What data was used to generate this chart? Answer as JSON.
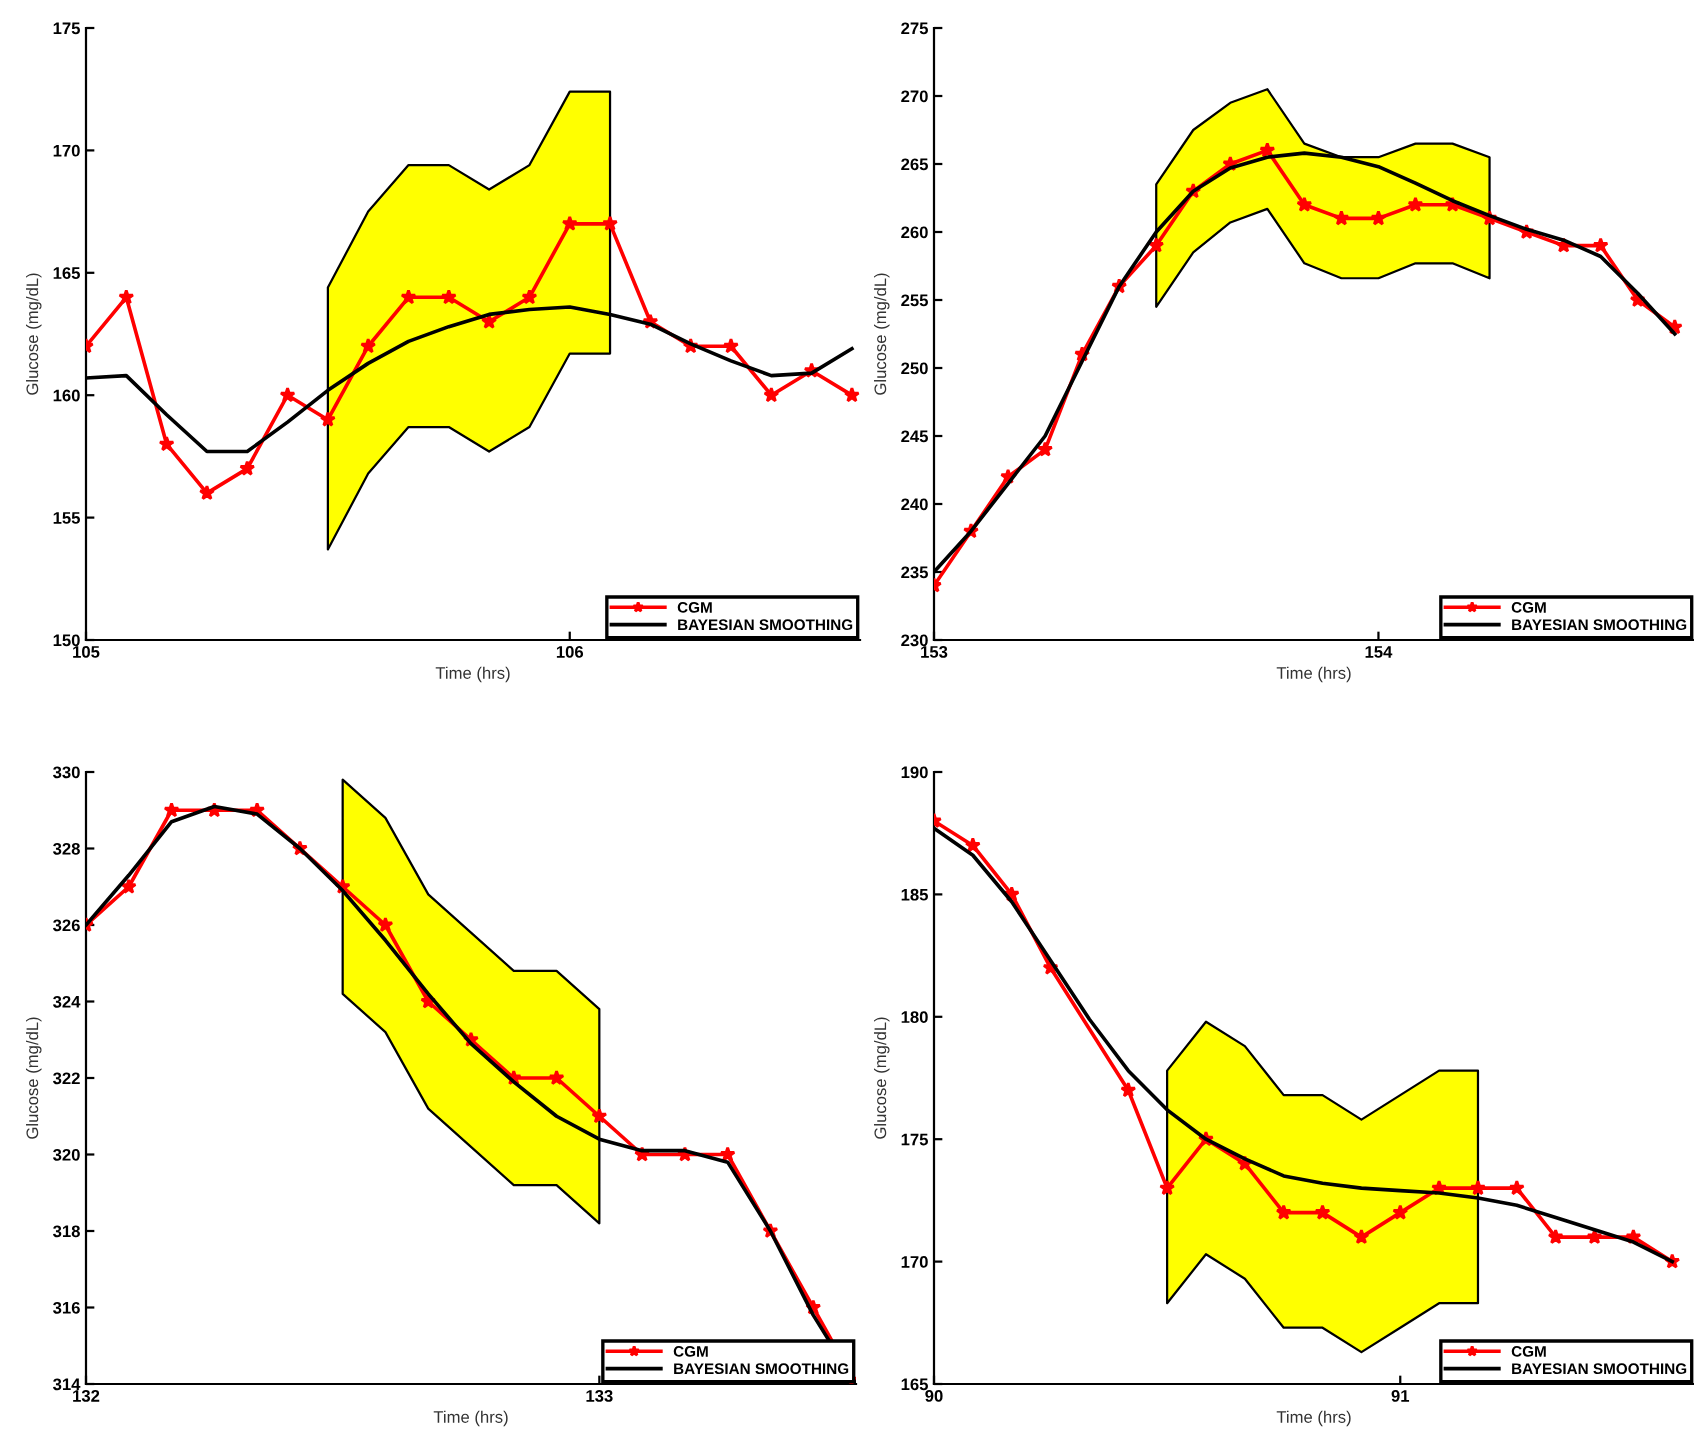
{
  "chart_data": [
    {
      "type": "line",
      "xlabel": "Time (hrs)",
      "ylabel": "Glucose (mg/dL)",
      "xlim": [
        105,
        106.6
      ],
      "xticks": [
        105,
        106
      ],
      "ylim": [
        150,
        175
      ],
      "yticks": [
        150,
        155,
        160,
        165,
        170,
        175
      ],
      "grid": false,
      "legend": "bottom right",
      "x": [
        105,
        105.0833,
        105.1667,
        105.25,
        105.3333,
        105.4167,
        105.5,
        105.5833,
        105.6667,
        105.75,
        105.8333,
        105.9167,
        106,
        106.0833,
        106.1667,
        106.25,
        106.3333,
        106.4167,
        106.5,
        106.5833
      ],
      "series": [
        {
          "name": "CGM",
          "color": "#ff0000",
          "marker": "star",
          "values": [
            162,
            164,
            158,
            156,
            157,
            160,
            159,
            162,
            164,
            164,
            163,
            164,
            167,
            167,
            163,
            162,
            162,
            160,
            161,
            160
          ]
        },
        {
          "name": "BAYESIAN SMOOTHING",
          "color": "#000000",
          "marker": "none",
          "values": [
            160.7,
            160.8,
            159.2,
            157.7,
            157.7,
            158.9,
            160.2,
            161.3,
            162.2,
            162.8,
            163.3,
            163.5,
            163.6,
            163.3,
            162.9,
            162.1,
            161.4,
            160.8,
            160.9,
            161.9
          ],
          "upper": [
            null,
            null,
            null,
            null,
            null,
            null,
            164.4,
            167.5,
            169.4,
            169.4,
            168.4,
            169.4,
            172.4,
            172.4,
            null,
            null,
            null,
            null,
            null,
            null
          ],
          "lower": [
            null,
            null,
            null,
            null,
            null,
            null,
            153.7,
            156.8,
            158.7,
            158.7,
            157.7,
            158.7,
            161.7,
            161.7,
            null,
            null,
            null,
            null,
            null,
            null
          ]
        }
      ]
    },
    {
      "type": "line",
      "xlabel": "Time (hrs)",
      "ylabel": "Glucose (mg/dL)",
      "xlim": [
        153,
        154.71
      ],
      "xticks": [
        153,
        154
      ],
      "ylim": [
        230,
        275
      ],
      "yticks": [
        230,
        235,
        240,
        245,
        250,
        255,
        260,
        265,
        270,
        275
      ],
      "grid": false,
      "legend": "bottom right",
      "x": [
        153,
        153.0833,
        153.1667,
        153.25,
        153.3333,
        153.4167,
        153.5,
        153.5833,
        153.6667,
        153.75,
        153.8333,
        153.9167,
        154,
        154.0833,
        154.1667,
        154.25,
        154.3333,
        154.4167,
        154.5,
        154.5833,
        154.6667
      ],
      "series": [
        {
          "name": "CGM",
          "color": "#ff0000",
          "marker": "star",
          "values": [
            234,
            238,
            242,
            244,
            251,
            256,
            259,
            263,
            265,
            266,
            262,
            261,
            261,
            262,
            262,
            261,
            260,
            259,
            259,
            255,
            253
          ]
        },
        {
          "name": "BAYESIAN SMOOTHING",
          "color": "#000000",
          "marker": "none",
          "values": [
            235,
            238,
            241.5,
            245,
            250.5,
            256,
            260,
            263,
            264.7,
            265.5,
            265.8,
            265.5,
            264.8,
            263.6,
            262.3,
            261.2,
            260.2,
            259.4,
            258.2,
            255.5,
            252.5
          ],
          "upper": [
            null,
            null,
            null,
            null,
            null,
            null,
            263.5,
            267.5,
            269.5,
            270.5,
            266.5,
            265.5,
            265.5,
            266.5,
            266.5,
            265.5,
            null,
            null,
            null,
            null,
            null
          ],
          "lower": [
            null,
            null,
            null,
            null,
            null,
            null,
            254.5,
            258.5,
            260.7,
            261.7,
            257.7,
            256.6,
            256.6,
            257.7,
            257.7,
            256.6,
            null,
            null,
            null,
            null,
            null
          ]
        }
      ]
    },
    {
      "type": "line",
      "xlabel": "Time (hrs)",
      "ylabel": "Glucose (mg/dL)",
      "xlim": [
        132,
        133.5
      ],
      "xticks": [
        132,
        133
      ],
      "ylim": [
        314,
        330
      ],
      "yticks": [
        314,
        316,
        318,
        320,
        322,
        324,
        326,
        328,
        330
      ],
      "grid": false,
      "legend": "bottom right",
      "x": [
        132,
        132.0833,
        132.1667,
        132.25,
        132.3333,
        132.4167,
        132.5,
        132.5833,
        132.6667,
        132.75,
        132.8333,
        132.9167,
        133,
        133.0833,
        133.1667,
        133.25,
        133.3333,
        133.4167,
        133.5
      ],
      "series": [
        {
          "name": "CGM",
          "color": "#ff0000",
          "marker": "star",
          "values": [
            326,
            327,
            329,
            329,
            329,
            328,
            327,
            326,
            324,
            323,
            322,
            322,
            321,
            320,
            320,
            320,
            318,
            316,
            314
          ]
        },
        {
          "name": "BAYESIAN SMOOTHING",
          "color": "#000000",
          "marker": "none",
          "values": [
            326,
            327.3,
            328.7,
            329.1,
            328.9,
            328,
            326.9,
            325.6,
            324.2,
            322.9,
            321.9,
            321,
            320.4,
            320.1,
            320.1,
            319.8,
            318,
            315.8,
            314
          ],
          "upper": [
            null,
            null,
            null,
            null,
            null,
            null,
            329.8,
            328.8,
            326.8,
            325.8,
            324.8,
            324.8,
            323.8,
            null,
            null,
            null,
            null,
            null,
            null
          ],
          "lower": [
            null,
            null,
            null,
            null,
            null,
            null,
            324.2,
            323.2,
            321.2,
            320.2,
            319.2,
            319.2,
            318.2,
            null,
            null,
            null,
            null,
            null,
            null
          ]
        }
      ]
    },
    {
      "type": "line",
      "xlabel": "Time (hrs)",
      "ylabel": "Glucose (mg/dL)",
      "xlim": [
        90,
        91.63
      ],
      "xticks": [
        90,
        91
      ],
      "ylim": [
        165,
        190
      ],
      "yticks": [
        165,
        170,
        175,
        180,
        185,
        190
      ],
      "grid": false,
      "legend": "bottom right",
      "x": [
        90,
        90.0833,
        90.1667,
        90.25,
        90.3333,
        90.4167,
        90.5,
        90.5833,
        90.6667,
        90.75,
        90.8333,
        90.9167,
        91,
        91.0833,
        91.1667,
        91.25,
        91.3333,
        91.4167,
        91.5,
        91.5833
      ],
      "series": [
        {
          "name": "CGM",
          "color": "#ff0000",
          "marker": "star",
          "x": [
            90,
            90.0833,
            90.1667,
            90.25,
            90.4167,
            90.5,
            90.5833,
            90.6667,
            90.75,
            90.8333,
            90.9167,
            91,
            91.0833,
            91.1667,
            91.25,
            91.3333,
            91.4167,
            91.5,
            91.5833
          ],
          "values": [
            188,
            187,
            185,
            182,
            177,
            173,
            175,
            174,
            172,
            172,
            171,
            172,
            173,
            173,
            173,
            171,
            171,
            171,
            170
          ]
        },
        {
          "name": "BAYESIAN SMOOTHING",
          "color": "#000000",
          "marker": "none",
          "values": [
            187.7,
            186.6,
            184.7,
            182.3,
            179.9,
            177.8,
            176.2,
            175,
            174.2,
            173.5,
            173.2,
            173,
            172.9,
            172.8,
            172.6,
            172.3,
            171.8,
            171.3,
            170.8,
            170
          ],
          "upper": [
            null,
            null,
            null,
            null,
            null,
            null,
            177.8,
            179.8,
            178.8,
            176.8,
            176.8,
            175.8,
            176.8,
            177.8,
            177.8,
            null,
            null,
            null,
            null,
            null
          ],
          "lower": [
            null,
            null,
            null,
            null,
            null,
            null,
            168.3,
            170.3,
            169.3,
            167.3,
            167.3,
            166.3,
            167.3,
            168.3,
            168.3,
            null,
            null,
            null,
            null,
            null
          ]
        }
      ]
    }
  ]
}
